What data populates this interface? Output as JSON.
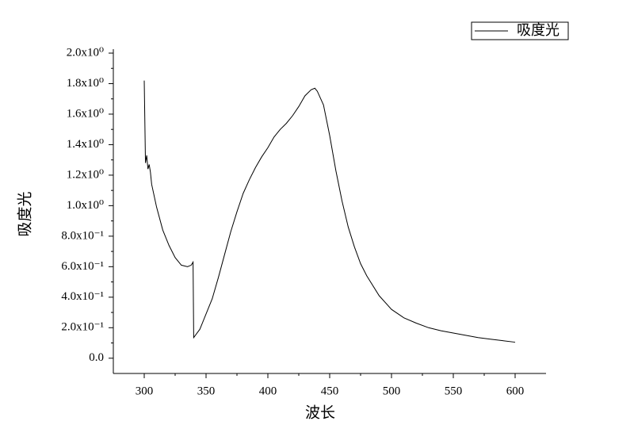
{
  "chart_data": {
    "type": "line",
    "x_label": "波长",
    "y_label": "吸度光",
    "x": [
      300,
      301,
      302,
      303,
      304,
      305,
      306,
      310,
      315,
      320,
      325,
      330,
      335,
      338,
      339.5,
      340,
      345,
      350,
      355,
      360,
      365,
      370,
      375,
      380,
      385,
      390,
      395,
      400,
      405,
      410,
      415,
      420,
      425,
      430,
      435,
      438,
      440,
      445,
      450,
      455,
      460,
      465,
      470,
      475,
      480,
      490,
      500,
      510,
      520,
      530,
      540,
      550,
      560,
      570,
      580,
      590,
      600
    ],
    "series": [
      {
        "name": "吸度光",
        "color": "#000000",
        "values": [
          1.82,
          1.28,
          1.33,
          1.24,
          1.27,
          1.22,
          1.14,
          0.99,
          0.84,
          0.74,
          0.66,
          0.61,
          0.6,
          0.61,
          0.63,
          0.135,
          0.19,
          0.29,
          0.39,
          0.53,
          0.68,
          0.83,
          0.96,
          1.08,
          1.17,
          1.25,
          1.32,
          1.38,
          1.45,
          1.5,
          1.54,
          1.59,
          1.65,
          1.72,
          1.76,
          1.77,
          1.75,
          1.66,
          1.46,
          1.23,
          1.03,
          0.86,
          0.73,
          0.62,
          0.54,
          0.41,
          0.32,
          0.265,
          0.23,
          0.2,
          0.18,
          0.165,
          0.15,
          0.135,
          0.125,
          0.115,
          0.105
        ]
      }
    ],
    "xlim": [
      275,
      625
    ],
    "xticks": [
      300,
      350,
      400,
      450,
      500,
      550,
      600
    ],
    "ylim": [
      -0.1,
      2.0
    ],
    "yticks": [
      {
        "value": 0,
        "label": "0.0"
      },
      {
        "value": 0.2,
        "label": "2.0x10⁻¹"
      },
      {
        "value": 0.4,
        "label": "4.0x10⁻¹"
      },
      {
        "value": 0.6,
        "label": "6.0x10⁻¹"
      },
      {
        "value": 0.8,
        "label": "8.0x10⁻¹"
      },
      {
        "value": 1.0,
        "label": "1.0x10⁰"
      },
      {
        "value": 1.2,
        "label": "1.2x10⁰"
      },
      {
        "value": 1.4,
        "label": "1.4x10⁰"
      },
      {
        "value": 1.6,
        "label": "1.6x10⁰"
      },
      {
        "value": 1.8,
        "label": "1.8x10⁰"
      },
      {
        "value": 2.0,
        "label": "2.0x10⁰"
      }
    ],
    "grid": false,
    "legend": "top-right"
  }
}
